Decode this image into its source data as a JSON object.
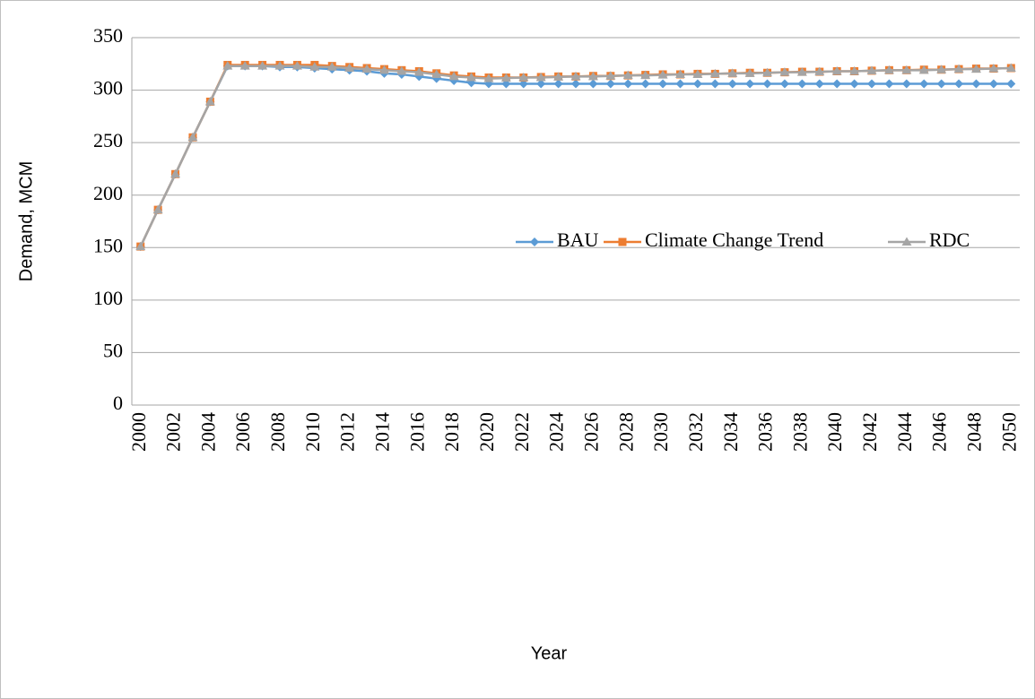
{
  "chart_data": {
    "type": "line",
    "x_label": "Year",
    "y_label": "Demand, MCM",
    "categories": [
      "2000",
      null,
      "2002",
      null,
      "2004",
      null,
      "2006",
      null,
      "2008",
      null,
      "2010",
      null,
      "2012",
      null,
      "2014",
      null,
      "2016",
      null,
      "2018",
      null,
      "2020",
      null,
      "2022",
      null,
      "2024",
      null,
      "2026",
      null,
      "2028",
      null,
      "2030",
      null,
      "2032",
      null,
      "2034",
      null,
      "2036",
      null,
      "2038",
      null,
      "2040",
      null,
      "2042",
      null,
      "2044",
      null,
      "2046",
      null,
      "2048",
      null,
      "2050"
    ],
    "ylim": [
      0,
      350
    ],
    "yticks": [
      0,
      50,
      100,
      150,
      200,
      250,
      300,
      350
    ],
    "grid": true,
    "legend": "right",
    "series": [
      {
        "name": "BAU",
        "color": "#5b9bd5",
        "marker": "diamond",
        "values": [
          151,
          186,
          220,
          255,
          289,
          323,
          323,
          323,
          322,
          322,
          321,
          320,
          319,
          318,
          316,
          315,
          313,
          311,
          309,
          307,
          306,
          306,
          306,
          306,
          306,
          306,
          306,
          306,
          306,
          306,
          306,
          306,
          306,
          306,
          306,
          306,
          306,
          306,
          306,
          306,
          306,
          306,
          306,
          306,
          306,
          306,
          306,
          306,
          306,
          306,
          306
        ]
      },
      {
        "name": "Climate Change Trend",
        "color": "#ed7d31",
        "marker": "square",
        "values": [
          151,
          186,
          220,
          255,
          289,
          324,
          324,
          324,
          324,
          324,
          324,
          323,
          322,
          321,
          320,
          319,
          318,
          316,
          314,
          313,
          312,
          312,
          312,
          312.5,
          313,
          313,
          313.5,
          313.5,
          314,
          314.5,
          315,
          315,
          315.5,
          315.5,
          316,
          316.5,
          316.5,
          317,
          317.5,
          317.5,
          318,
          318,
          318.5,
          319,
          319,
          319.5,
          319.5,
          320,
          320.5,
          320.5,
          321
        ]
      },
      {
        "name": "RDC",
        "color": "#a5a5a5",
        "marker": "triangle",
        "values": [
          151,
          186,
          220,
          255,
          289,
          323,
          323,
          323,
          323,
          323,
          322,
          322,
          321,
          320,
          319,
          318,
          317,
          315,
          313,
          312,
          311,
          311.5,
          312,
          312,
          312.5,
          313,
          313,
          313.5,
          314,
          314,
          314.5,
          315,
          315,
          315.5,
          316,
          316,
          316.5,
          317,
          317,
          317.5,
          318,
          318,
          318.5,
          319,
          319,
          319,
          319.5,
          320,
          320,
          320.5,
          321
        ]
      }
    ]
  }
}
